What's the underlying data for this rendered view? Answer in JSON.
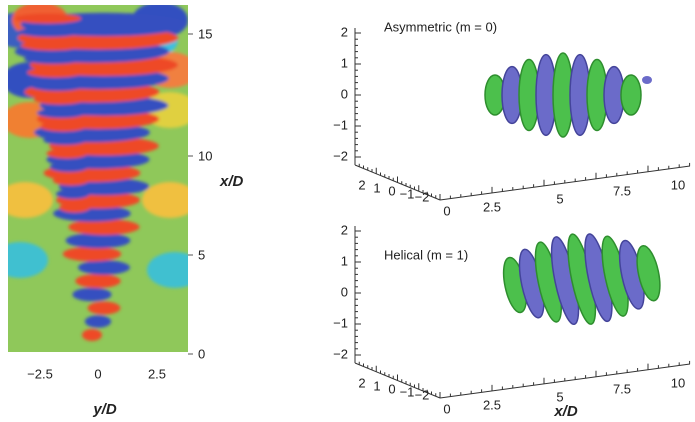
{
  "left_panel": {
    "y_ticks": [
      "15",
      "10",
      "5",
      "0"
    ],
    "y_label": "x/D",
    "x_ticks": [
      "−2.5",
      "0",
      "2.5"
    ],
    "x_label": "y/D"
  },
  "right_panels": [
    {
      "label": "Asymmetric (m = 0)",
      "z_ticks": [
        "2",
        "1",
        "0",
        "−1",
        "−2"
      ],
      "depth_ticks": [
        "2",
        "1",
        "0",
        "−1",
        "−2"
      ],
      "x_ticks": [
        "0",
        "2.5",
        "5",
        "7.5",
        "10"
      ]
    },
    {
      "label": "Helical (m = 1)",
      "z_ticks": [
        "2",
        "1",
        "0",
        "−1",
        "−2"
      ],
      "depth_ticks": [
        "2",
        "1",
        "0",
        "−1",
        "−2"
      ],
      "x_ticks": [
        "0",
        "2.5",
        "5",
        "7.5",
        "10"
      ]
    }
  ],
  "x_label": "x/D"
}
